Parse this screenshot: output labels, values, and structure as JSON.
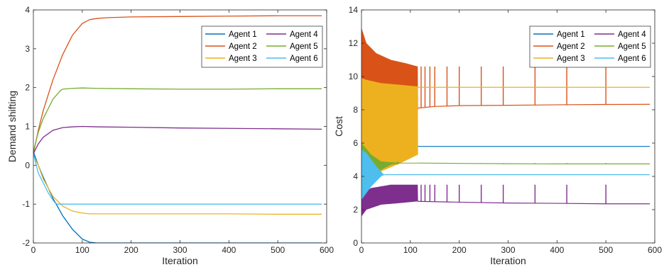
{
  "chart_data": [
    {
      "type": "line",
      "title": "",
      "xlabel": "Iteration",
      "ylabel": "Demand shifting",
      "xlim": [
        0,
        600
      ],
      "ylim": [
        -2,
        4
      ],
      "xticks": [
        0,
        100,
        200,
        300,
        400,
        500,
        600
      ],
      "yticks": [
        -2,
        -1,
        0,
        1,
        2,
        3,
        4
      ],
      "grid": false,
      "legend": {
        "placement": "top-right",
        "columns": 2
      },
      "series": [
        {
          "name": "Agent 1",
          "color": "#0072BD",
          "x": [
            0,
            10,
            20,
            40,
            60,
            80,
            100,
            115,
            130,
            150,
            200,
            300,
            400,
            500,
            590
          ],
          "y": [
            0.35,
            0.0,
            -0.3,
            -0.85,
            -1.3,
            -1.65,
            -1.9,
            -1.98,
            -2.0,
            -2.0,
            -2.0,
            -2.0,
            -2.0,
            -2.0,
            -2.0
          ]
        },
        {
          "name": "Agent 2",
          "color": "#D95319",
          "x": [
            0,
            10,
            20,
            40,
            60,
            80,
            100,
            115,
            130,
            150,
            200,
            300,
            400,
            500,
            590
          ],
          "y": [
            0.3,
            0.9,
            1.4,
            2.2,
            2.85,
            3.35,
            3.65,
            3.75,
            3.78,
            3.8,
            3.82,
            3.83,
            3.84,
            3.85,
            3.85
          ]
        },
        {
          "name": "Agent 3",
          "color": "#EDB120",
          "x": [
            0,
            10,
            20,
            40,
            60,
            80,
            100,
            115,
            130,
            200,
            300,
            400,
            500,
            590
          ],
          "y": [
            0.25,
            0.0,
            -0.35,
            -0.8,
            -1.05,
            -1.18,
            -1.23,
            -1.25,
            -1.25,
            -1.25,
            -1.25,
            -1.25,
            -1.26,
            -1.26
          ]
        },
        {
          "name": "Agent 4",
          "color": "#7E2F8E",
          "x": [
            0,
            10,
            20,
            40,
            60,
            80,
            100,
            130,
            200,
            300,
            400,
            500,
            590
          ],
          "y": [
            0.3,
            0.55,
            0.72,
            0.9,
            0.97,
            0.99,
            1.0,
            0.99,
            0.98,
            0.96,
            0.95,
            0.94,
            0.93
          ]
        },
        {
          "name": "Agent 5",
          "color": "#77AC30",
          "x": [
            0,
            10,
            20,
            40,
            55,
            60,
            80,
            100,
            130,
            200,
            300,
            400,
            500,
            590
          ],
          "y": [
            0.35,
            0.85,
            1.2,
            1.7,
            1.92,
            1.96,
            1.98,
            1.99,
            1.98,
            1.97,
            1.96,
            1.96,
            1.97,
            1.97
          ]
        },
        {
          "name": "Agent 6",
          "color": "#4DBEEE",
          "x": [
            0,
            10,
            20,
            30,
            40,
            45,
            50,
            100,
            200,
            300,
            400,
            500,
            590
          ],
          "y": [
            0.3,
            -0.2,
            -0.45,
            -0.7,
            -0.9,
            -0.98,
            -1.0,
            -1.0,
            -1.0,
            -1.0,
            -1.0,
            -1.0,
            -1.0
          ]
        }
      ]
    },
    {
      "type": "line",
      "title": "",
      "xlabel": "Iteration",
      "ylabel": "Cost",
      "xlim": [
        0,
        600
      ],
      "ylim": [
        0,
        14
      ],
      "xticks": [
        0,
        100,
        200,
        300,
        400,
        500,
        600
      ],
      "yticks": [
        0,
        2,
        4,
        6,
        8,
        10,
        12,
        14
      ],
      "grid": false,
      "legend": {
        "placement": "top-right",
        "columns": 2
      },
      "oscillation_end": 115,
      "spike_iterations": [
        122,
        130,
        140,
        150,
        175,
        200,
        245,
        290,
        355,
        420,
        500
      ],
      "series": [
        {
          "name": "Agent 1",
          "color": "#0072BD",
          "upper": {
            "x": [
              0,
              20,
              40,
              60,
              80,
              100,
              115
            ],
            "y": [
              5.6,
              4.8,
              4.5,
              5.0,
              5.4,
              5.7,
              5.8
            ]
          },
          "lower": {
            "x": [
              0,
              20,
              40,
              60,
              80,
              100,
              115
            ],
            "y": [
              2.8,
              3.5,
              4.3,
              5.0,
              5.4,
              5.7,
              5.8
            ]
          },
          "x": [
            115,
            200,
            300,
            400,
            500,
            590
          ],
          "y": [
            5.8,
            5.8,
            5.8,
            5.8,
            5.8,
            5.8
          ],
          "spike_to": 5.8
        },
        {
          "name": "Agent 2",
          "color": "#D95319",
          "upper": {
            "x": [
              0,
              10,
              30,
              60,
              90,
              115
            ],
            "y": [
              12.9,
              12.0,
              11.4,
              11.0,
              10.8,
              10.6
            ]
          },
          "lower": {
            "x": [
              0,
              10,
              30,
              60,
              90,
              115
            ],
            "y": [
              8.0,
              7.7,
              7.7,
              7.8,
              7.9,
              8.0
            ]
          },
          "x": [
            115,
            150,
            200,
            300,
            400,
            500,
            590
          ],
          "y": [
            8.1,
            8.2,
            8.25,
            8.27,
            8.3,
            8.32,
            8.33
          ],
          "spike_to": 10.6
        },
        {
          "name": "Agent 3",
          "color": "#EDB120",
          "upper": {
            "x": [
              0,
              10,
              40,
              80,
              115
            ],
            "y": [
              9.9,
              9.8,
              9.6,
              9.5,
              9.4
            ]
          },
          "lower": {
            "x": [
              0,
              10,
              40,
              80,
              115
            ],
            "y": [
              4.3,
              4.0,
              4.3,
              4.8,
              5.3
            ]
          },
          "x": [
            115,
            200,
            300,
            400,
            500,
            590
          ],
          "y": [
            9.35,
            9.35,
            9.35,
            9.35,
            9.35,
            9.35
          ],
          "spike_to": 9.35
        },
        {
          "name": "Agent 4",
          "color": "#7E2F8E",
          "upper": {
            "x": [
              0,
              20,
              60,
              115
            ],
            "y": [
              3.0,
              3.3,
              3.5,
              3.5
            ]
          },
          "lower": {
            "x": [
              0,
              10,
              40,
              80,
              115
            ],
            "y": [
              1.6,
              2.0,
              2.3,
              2.4,
              2.5
            ]
          },
          "x": [
            115,
            200,
            300,
            400,
            500,
            590
          ],
          "y": [
            2.5,
            2.45,
            2.4,
            2.38,
            2.35,
            2.35
          ],
          "spike_to": 3.5
        },
        {
          "name": "Agent 5",
          "color": "#77AC30",
          "upper": {
            "x": [
              0,
              20,
              40,
              60,
              80,
              115
            ],
            "y": [
              6.0,
              5.3,
              4.9,
              4.85,
              4.8,
              4.8
            ]
          },
          "lower": {
            "x": [
              0,
              20,
              40,
              60,
              80,
              115
            ],
            "y": [
              2.8,
              3.8,
              4.4,
              4.7,
              4.8,
              4.8
            ]
          },
          "x": [
            115,
            200,
            300,
            400,
            500,
            590
          ],
          "y": [
            4.8,
            4.78,
            4.76,
            4.75,
            4.75,
            4.75
          ],
          "spike_to": 4.8
        },
        {
          "name": "Agent 6",
          "color": "#4DBEEE",
          "upper": {
            "x": [
              0,
              10,
              20,
              30,
              40,
              45
            ],
            "y": [
              5.6,
              5.4,
              5.0,
              4.6,
              4.3,
              4.1
            ]
          },
          "lower": {
            "x": [
              0,
              10,
              20,
              30,
              40,
              45
            ],
            "y": [
              2.6,
              3.0,
              3.4,
              3.7,
              4.0,
              4.1
            ]
          },
          "x": [
            45,
            100,
            200,
            300,
            400,
            500,
            590
          ],
          "y": [
            4.1,
            4.1,
            4.1,
            4.1,
            4.1,
            4.1,
            4.1
          ],
          "spike_to": 4.1
        }
      ]
    }
  ]
}
